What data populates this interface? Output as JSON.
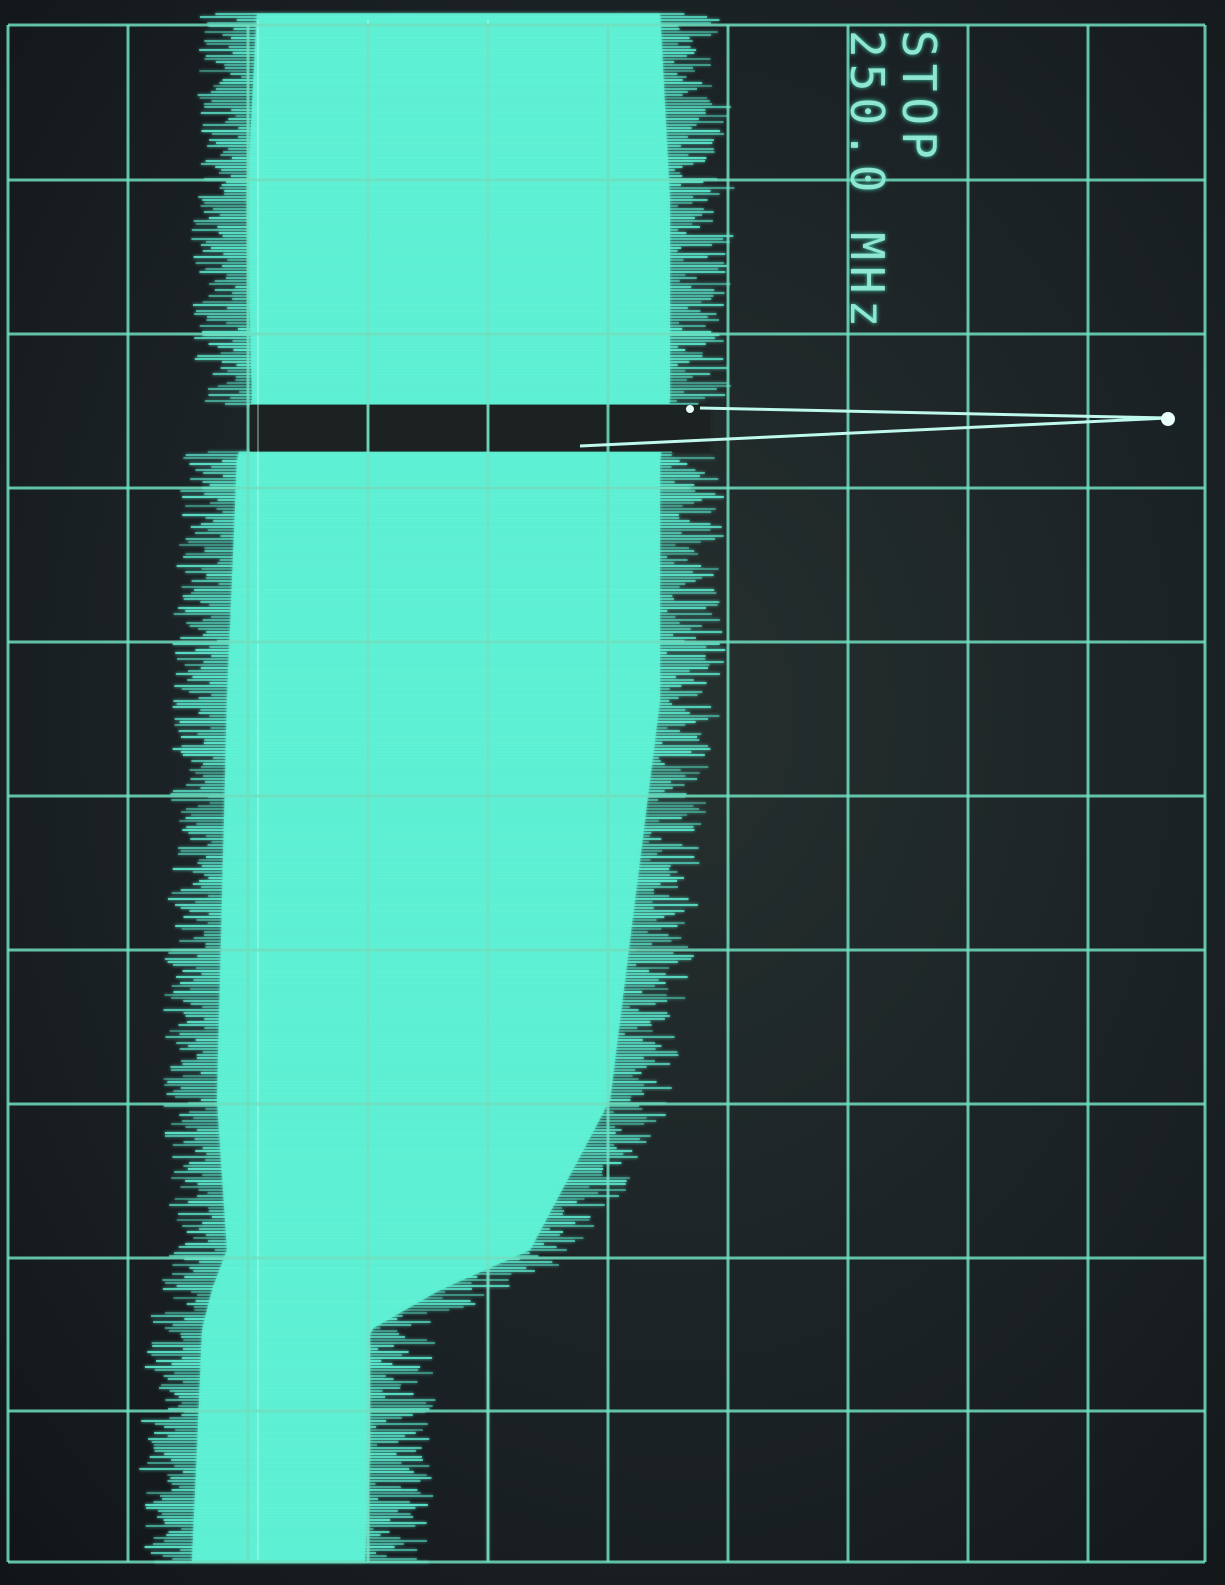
{
  "readout": {
    "mode": "STOP",
    "frequency": "250.0 MHz"
  },
  "display": {
    "trace_color": "#5ff2d6",
    "grid_color": "#6fe0c0"
  }
}
